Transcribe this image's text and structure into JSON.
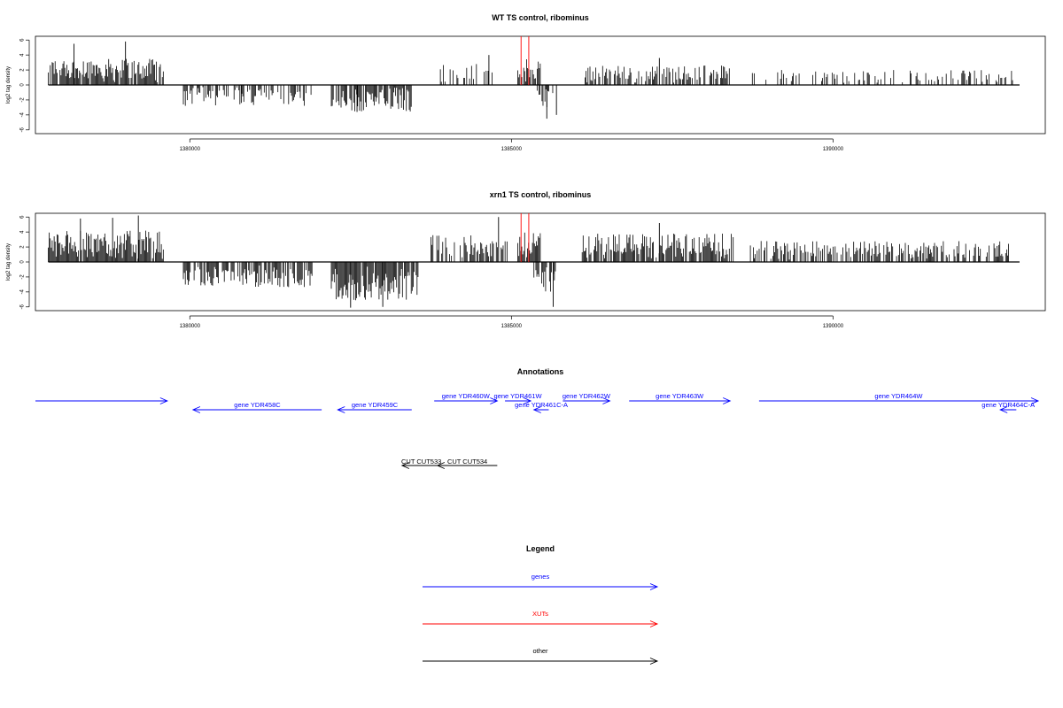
{
  "chart_data": [
    {
      "type": "bar",
      "title": "WT TS control, ribominus",
      "ylabel": "log2 tag density",
      "xlim": [
        1377600,
        1393300
      ],
      "ylim": [
        -6.5,
        6.5
      ],
      "yticks": [
        -6,
        -4,
        -2,
        0,
        2,
        4,
        6
      ],
      "xticks": [
        1380000,
        1385000,
        1390000
      ],
      "xtick_labels": [
        "1380000",
        "1385000",
        "1390000"
      ],
      "segments": [
        {
          "x0": 1377800,
          "x1": 1379600,
          "sign": 1,
          "max": 3.5,
          "density": 0.85
        },
        {
          "x0": 1379900,
          "x1": 1381900,
          "sign": -1,
          "max": 2.8,
          "density": 0.55
        },
        {
          "x0": 1382200,
          "x1": 1383450,
          "sign": -1,
          "max": 3.6,
          "density": 0.75
        },
        {
          "x0": 1383850,
          "x1": 1384750,
          "sign": 1,
          "max": 2.8,
          "density": 0.35
        },
        {
          "x0": 1385100,
          "x1": 1385450,
          "sign": 1,
          "max": 3.5,
          "density": 0.9
        },
        {
          "x0": 1385400,
          "x1": 1385650,
          "sign": -1,
          "max": 3.2,
          "density": 0.6
        },
        {
          "x0": 1386100,
          "x1": 1388400,
          "sign": 1,
          "max": 2.6,
          "density": 0.55
        },
        {
          "x0": 1388700,
          "x1": 1392850,
          "sign": 1,
          "max": 2.0,
          "density": 0.3
        }
      ],
      "peaks": [
        {
          "x": 1378200,
          "y": 5.5
        },
        {
          "x": 1379000,
          "y": 5.8
        },
        {
          "x": 1380800,
          "y": -2.4
        },
        {
          "x": 1382600,
          "y": -3.6
        },
        {
          "x": 1385550,
          "y": -4.5
        },
        {
          "x": 1385700,
          "y": -4.0
        },
        {
          "x": 1384650,
          "y": 4.0
        },
        {
          "x": 1387300,
          "y": 3.6
        }
      ],
      "xut_marks": [
        {
          "x": 1385150,
          "y": 6.5
        },
        {
          "x": 1385270,
          "y": 6.5
        }
      ]
    },
    {
      "type": "bar",
      "title": "xrn1 TS control, ribominus",
      "ylabel": "log2 tag density",
      "xlim": [
        1377600,
        1393300
      ],
      "ylim": [
        -6.5,
        6.5
      ],
      "yticks": [
        -6,
        -4,
        -2,
        0,
        2,
        4,
        6
      ],
      "xticks": [
        1380000,
        1385000,
        1390000
      ],
      "xtick_labels": [
        "1380000",
        "1385000",
        "1390000"
      ],
      "segments": [
        {
          "x0": 1377800,
          "x1": 1379600,
          "sign": 1,
          "max": 4.2,
          "density": 0.95
        },
        {
          "x0": 1379900,
          "x1": 1381900,
          "sign": -1,
          "max": 3.4,
          "density": 0.75
        },
        {
          "x0": 1382200,
          "x1": 1383550,
          "sign": -1,
          "max": 5.2,
          "density": 0.95
        },
        {
          "x0": 1383750,
          "x1": 1384950,
          "sign": 1,
          "max": 3.6,
          "density": 0.6
        },
        {
          "x0": 1385100,
          "x1": 1385450,
          "sign": 1,
          "max": 4.0,
          "density": 0.9
        },
        {
          "x0": 1385350,
          "x1": 1385700,
          "sign": -1,
          "max": 4.2,
          "density": 0.8
        },
        {
          "x0": 1386100,
          "x1": 1388450,
          "sign": 1,
          "max": 3.8,
          "density": 0.85
        },
        {
          "x0": 1388700,
          "x1": 1392850,
          "sign": 1,
          "max": 2.8,
          "density": 0.6
        }
      ],
      "peaks": [
        {
          "x": 1378300,
          "y": 5.8
        },
        {
          "x": 1379200,
          "y": 6.2
        },
        {
          "x": 1378800,
          "y": 5.9
        },
        {
          "x": 1382500,
          "y": -6.1
        },
        {
          "x": 1383000,
          "y": -6.0
        },
        {
          "x": 1385650,
          "y": -6.0
        },
        {
          "x": 1384800,
          "y": 6.0
        },
        {
          "x": 1387300,
          "y": 5.2
        }
      ],
      "xut_marks": [
        {
          "x": 1385150,
          "y": 6.5
        },
        {
          "x": 1385270,
          "y": 6.5
        }
      ]
    }
  ],
  "annotations": {
    "title": "Annotations",
    "genes_color": "#0000ff",
    "other_color": "#000000",
    "genes": [
      {
        "label": "",
        "x0": 1377600,
        "x1": 1379650,
        "dir": "+",
        "row": 1
      },
      {
        "label": "gene YDR458C",
        "x0": 1380050,
        "x1": 1382050,
        "dir": "-",
        "row": 2
      },
      {
        "label": "gene YDR459C",
        "x0": 1382300,
        "x1": 1383450,
        "dir": "-",
        "row": 2
      },
      {
        "label": "gene YDR460W",
        "x0": 1383800,
        "x1": 1384780,
        "dir": "+",
        "row": 1
      },
      {
        "label": "gene YDR461W",
        "x0": 1384900,
        "x1": 1385300,
        "dir": "+",
        "row": 1
      },
      {
        "label": "gene YDR461C-A",
        "x0": 1385350,
        "x1": 1385580,
        "dir": "-",
        "row": 2
      },
      {
        "label": "gene YDR462W",
        "x0": 1385800,
        "x1": 1386530,
        "dir": "+",
        "row": 1
      },
      {
        "label": "gene YDR463W",
        "x0": 1386830,
        "x1": 1388400,
        "dir": "+",
        "row": 1
      },
      {
        "label": "gene YDR464W",
        "x0": 1388850,
        "x1": 1393280,
        "dir": "+",
        "row": 1
      },
      {
        "label": "gene YDR464C-A",
        "x0": 1392600,
        "x1": 1392850,
        "dir": "-",
        "row": 2
      }
    ],
    "other": [
      {
        "label": "CUT CUT533",
        "x0": 1383300,
        "x1": 1383900,
        "dir": "-"
      },
      {
        "label": "CUT CUT534",
        "x0": 1383850,
        "x1": 1384780,
        "dir": "-"
      }
    ]
  },
  "legend": {
    "title": "Legend",
    "items": [
      {
        "label": "genes",
        "color": "#0000ff"
      },
      {
        "label": "XUTs",
        "color": "#ff0000"
      },
      {
        "label": "other",
        "color": "#000000"
      }
    ]
  }
}
